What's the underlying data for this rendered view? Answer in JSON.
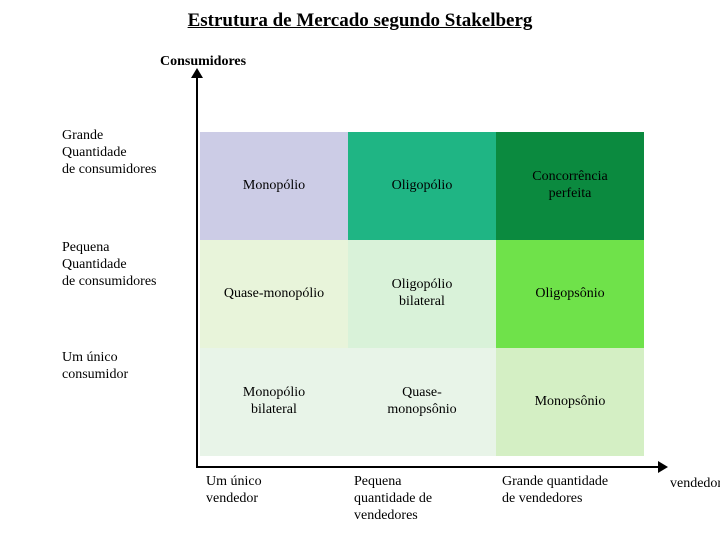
{
  "title": "Estrutura de Mercado segundo Stakelberg",
  "yAxisLabel": "Consumidores",
  "xAxisLabel": "vendedores",
  "rowLabels": [
    "Grande\nQuantidade\nde consumidores",
    "Pequena\nQuantidade\nde consumidores",
    "Um único\nconsumidor"
  ],
  "colLabels": [
    "Um único\nvendedor",
    "Pequena\nquantidade de\nvendedores",
    "Grande quantidade\nde vendedores"
  ],
  "cells": [
    [
      {
        "label": "Monopólio",
        "bg": "#cccce6"
      },
      {
        "label": "Oligopólio",
        "bg": "#1fb584"
      },
      {
        "label": "Concorrência\nperfeita",
        "bg": "#0b8a3f"
      }
    ],
    [
      {
        "label": "Quase-monopólio",
        "bg": "#e8f4da"
      },
      {
        "label": "Oligopólio\nbilateral",
        "bg": "#d9f2d9"
      },
      {
        "label": "Oligopsônio",
        "bg": "#6fe24a"
      }
    ],
    [
      {
        "label": "Monopólio\nbilateral",
        "bg": "#e8f4e8"
      },
      {
        "label": "Quase-\nmonopsônio",
        "bg": "#e8f4e8"
      },
      {
        "label": "Monopsônio",
        "bg": "#d4efc4"
      }
    ]
  ],
  "rowLabelTop": [
    128,
    240,
    350
  ],
  "layout": {
    "pageBg": "#ffffff",
    "titleFontSize": 19,
    "labelFontSize": 14,
    "cellHeight": 108,
    "gridLeft": 200,
    "gridTop": 132,
    "gridWidth": 444
  }
}
